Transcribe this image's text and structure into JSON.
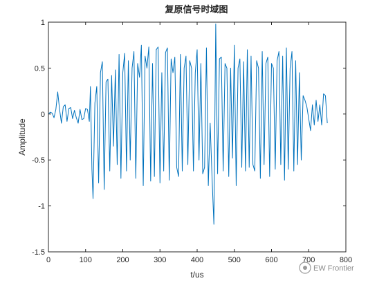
{
  "chart_data": {
    "type": "line",
    "title": "复原信号时域图",
    "xlabel": "t/us",
    "ylabel": "Amplitude",
    "xlim": [
      0,
      800
    ],
    "ylim": [
      -1.5,
      1
    ],
    "xticks": [
      0,
      100,
      200,
      300,
      400,
      500,
      600,
      700,
      800
    ],
    "yticks": [
      -1.5,
      -1,
      -0.5,
      0,
      0.5,
      1
    ],
    "xtick_labels": [
      "0",
      "100",
      "200",
      "300",
      "400",
      "500",
      "600",
      "700",
      "800"
    ],
    "ytick_labels": [
      "-1.5",
      "-1",
      "-0.5",
      "0",
      "0.5",
      "1"
    ],
    "grid": false,
    "series": [
      {
        "color": "#0072BD",
        "x": [
          0,
          5,
          10,
          15,
          20,
          25,
          30,
          35,
          40,
          45,
          50,
          55,
          60,
          65,
          70,
          75,
          80,
          85,
          90,
          95,
          100,
          105,
          110,
          113,
          117,
          120,
          125,
          130,
          135,
          140,
          145,
          150,
          155,
          160,
          165,
          170,
          175,
          180,
          185,
          190,
          195,
          200,
          205,
          210,
          215,
          220,
          225,
          230,
          235,
          240,
          245,
          250,
          255,
          260,
          265,
          270,
          275,
          280,
          285,
          290,
          295,
          300,
          305,
          310,
          315,
          320,
          325,
          330,
          335,
          340,
          345,
          350,
          355,
          360,
          365,
          370,
          375,
          380,
          385,
          390,
          395,
          400,
          405,
          410,
          415,
          420,
          425,
          430,
          435,
          440,
          445,
          450,
          455,
          460,
          465,
          470,
          475,
          480,
          485,
          490,
          495,
          500,
          505,
          510,
          515,
          520,
          525,
          530,
          535,
          540,
          545,
          550,
          555,
          560,
          565,
          570,
          575,
          580,
          585,
          590,
          595,
          600,
          605,
          610,
          615,
          620,
          625,
          630,
          635,
          640,
          645,
          650,
          655,
          660,
          665,
          670,
          675,
          680,
          685,
          690,
          695,
          700,
          705,
          710,
          715,
          720,
          725,
          730,
          735,
          740,
          745,
          750
        ],
        "y": [
          0,
          0.02,
          0.01,
          -0.04,
          0.05,
          0.24,
          0.05,
          -0.1,
          0.08,
          0.1,
          -0.08,
          0.06,
          0.07,
          -0.05,
          0.04,
          -0.04,
          -0.1,
          0.05,
          -0.06,
          -0.05,
          0.06,
          0.05,
          -0.08,
          0.3,
          -0.6,
          -0.92,
          0.12,
          0.3,
          -0.75,
          0.45,
          0.57,
          -0.82,
          0.35,
          0.38,
          -0.62,
          0.42,
          -0.35,
          0.48,
          -0.55,
          0.65,
          -0.7,
          0.45,
          0.66,
          -0.62,
          0.58,
          -0.5,
          0.5,
          0.68,
          -0.7,
          0.55,
          0.4,
          0.75,
          -0.78,
          0.63,
          0.5,
          0.73,
          -0.73,
          0.55,
          -0.68,
          0.7,
          0.73,
          -0.75,
          0.45,
          -0.62,
          0.67,
          0.72,
          -0.72,
          0.6,
          0.45,
          0.62,
          -0.58,
          -0.68,
          0.65,
          -0.62,
          0.5,
          0.63,
          -0.55,
          0.58,
          0.5,
          -0.62,
          0.45,
          0.7,
          -0.5,
          0.55,
          -0.65,
          -0.58,
          0.72,
          -0.78,
          -0.1,
          -0.68,
          -1.2,
          0.98,
          -0.65,
          0.6,
          0.62,
          -0.62,
          0.55,
          0.5,
          -0.68,
          0.5,
          -0.48,
          0.75,
          -0.78,
          0.5,
          0.6,
          -0.58,
          0.57,
          -0.62,
          0.7,
          -0.58,
          0.63,
          -0.55,
          -0.62,
          0.58,
          0.5,
          -0.7,
          0.68,
          -0.55,
          0.55,
          0.62,
          -0.68,
          0.55,
          0.5,
          -0.6,
          0.58,
          0.68,
          -0.55,
          0.63,
          -0.72,
          0.72,
          -0.6,
          0.5,
          0.68,
          -0.62,
          0.58,
          -0.55,
          0.45,
          -0.5,
          0.2,
          0.15,
          0.08,
          -0.05,
          -0.18,
          0.1,
          -0.12,
          0.15,
          -0.08,
          0.1,
          -0.12,
          0.22,
          0.2,
          -0.1
        ]
      }
    ]
  },
  "watermark": {
    "text": "EW Frontier"
  }
}
